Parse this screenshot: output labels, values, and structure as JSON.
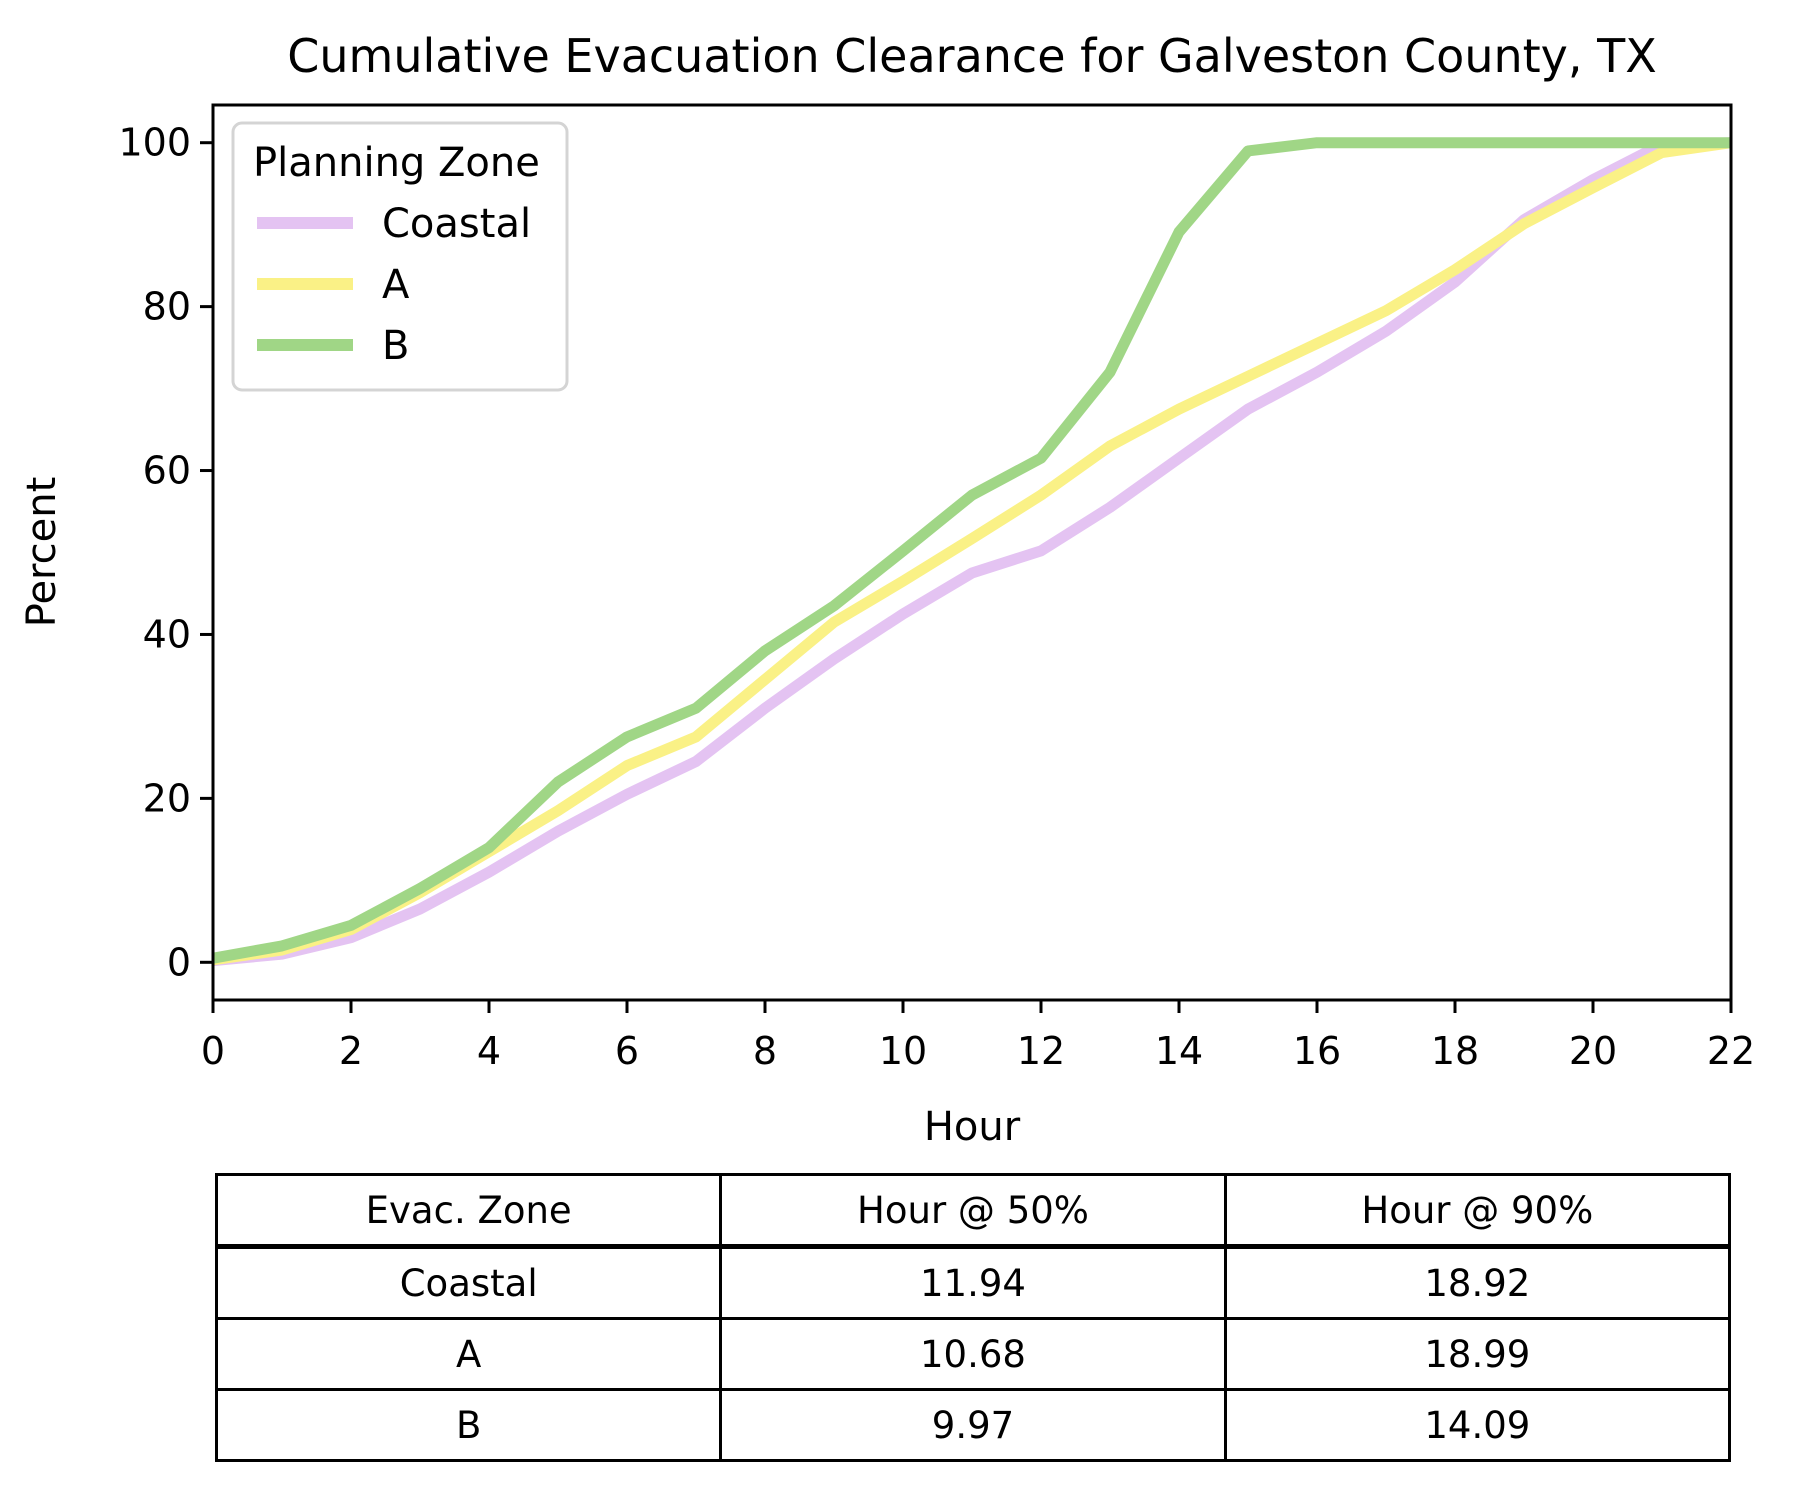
{
  "title": "Cumulative Evacuation Clearance for Galveston County, TX",
  "chart_data": {
    "type": "line",
    "title": "Cumulative Evacuation Clearance for Galveston County, TX",
    "xlabel": "Hour",
    "ylabel": "Percent",
    "xlim": [
      0,
      22
    ],
    "ylim": [
      -4.6,
      104.6
    ],
    "xticks": [
      0,
      2,
      4,
      6,
      8,
      10,
      12,
      14,
      16,
      18,
      20,
      22
    ],
    "yticks": [
      0,
      20,
      40,
      60,
      80,
      100
    ],
    "grid": false,
    "legend_title": "Planning Zone",
    "legend_position": "upper left",
    "line_width": 11,
    "x": [
      0,
      1,
      2,
      3,
      4,
      5,
      6,
      7,
      8,
      9,
      10,
      11,
      12,
      13,
      14,
      15,
      16,
      17,
      18,
      19,
      20,
      21,
      22
    ],
    "series": [
      {
        "name": "Coastal",
        "color": "#e4c3f2",
        "values": [
          0.2,
          1,
          3,
          6.5,
          11,
          16,
          20.5,
          24.5,
          31,
          37,
          42.5,
          47.5,
          50.2,
          55.5,
          61.5,
          67.5,
          72,
          77,
          83,
          90.6,
          95.5,
          99.8,
          100
        ]
      },
      {
        "name": "A",
        "color": "#faf186",
        "values": [
          0.3,
          1.5,
          4,
          8.5,
          13.5,
          18.5,
          24,
          27.5,
          34.5,
          41.5,
          46.5,
          51.7,
          57,
          63,
          67.5,
          71.5,
          75.5,
          79.5,
          84.5,
          90.1,
          94.5,
          98.8,
          100
        ]
      },
      {
        "name": "B",
        "color": "#a0d686",
        "values": [
          0.5,
          2,
          4.5,
          9,
          14,
          22,
          27.5,
          31,
          38,
          43.5,
          50.2,
          57,
          61.5,
          72,
          89.1,
          99,
          100,
          100,
          100,
          100,
          100,
          100,
          100
        ]
      }
    ]
  },
  "table": {
    "headers": [
      "Evac. Zone",
      "Hour @ 50%",
      "Hour @ 90%"
    ],
    "rows": [
      [
        "Coastal",
        "11.94",
        "18.92"
      ],
      [
        "A",
        "10.68",
        "18.99"
      ],
      [
        "B",
        "9.97",
        "14.09"
      ]
    ]
  }
}
